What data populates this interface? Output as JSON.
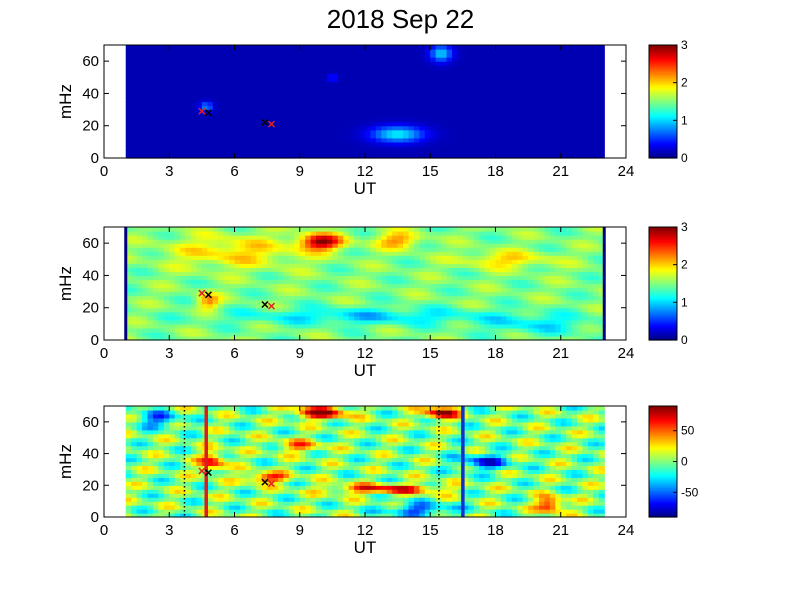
{
  "figure": {
    "title": "2018 Sep 22"
  },
  "colors": {
    "background": "#ffffff",
    "axis": "#000000",
    "red_line": "#d81e1e",
    "blue_line": "#1030d0",
    "marker_black": "#000000",
    "marker_red": "#e02020"
  },
  "chart_data": [
    {
      "type": "heatmap",
      "title": "",
      "xlabel": "UT",
      "ylabel": "mHz",
      "xlim": [
        0,
        24
      ],
      "ylim": [
        0,
        70
      ],
      "x_ticks": [
        "0",
        "3",
        "6",
        "9",
        "12",
        "15",
        "18",
        "21",
        "24"
      ],
      "y_ticks": [
        "0",
        "20",
        "40",
        "60"
      ],
      "data_x_range": [
        1,
        23
      ],
      "colormap": "jet",
      "clim": [
        0,
        3
      ],
      "colorbar_ticks": [
        "0",
        "1",
        "2",
        "3"
      ],
      "background_level": 0.15,
      "features": [
        {
          "ut": 13.5,
          "mhz": 15,
          "level": 1.1,
          "spread_ut": 1.2,
          "spread_mhz": 5
        },
        {
          "ut": 15.5,
          "mhz": 65,
          "level": 1.0,
          "spread_ut": 0.5,
          "spread_mhz": 5
        },
        {
          "ut": 4.7,
          "mhz": 32,
          "level": 0.8,
          "spread_ut": 0.3,
          "spread_mhz": 3
        },
        {
          "ut": 10.5,
          "mhz": 50,
          "level": 0.6,
          "spread_ut": 0.2,
          "spread_mhz": 2
        }
      ],
      "markers": [
        {
          "ut": 4.5,
          "mhz": 29,
          "color": "red"
        },
        {
          "ut": 4.8,
          "mhz": 28,
          "color": "black"
        },
        {
          "ut": 7.4,
          "mhz": 22,
          "color": "black"
        },
        {
          "ut": 7.7,
          "mhz": 21,
          "color": "red"
        }
      ],
      "vertical_lines": [],
      "edge_bars": false
    },
    {
      "type": "heatmap",
      "title": "",
      "xlabel": "UT",
      "ylabel": "mHz",
      "xlim": [
        0,
        24
      ],
      "ylim": [
        0,
        70
      ],
      "x_ticks": [
        "0",
        "3",
        "6",
        "9",
        "12",
        "15",
        "18",
        "21",
        "24"
      ],
      "y_ticks": [
        "0",
        "20",
        "40",
        "60"
      ],
      "data_x_range": [
        1,
        23
      ],
      "colormap": "jet",
      "clim": [
        0,
        3
      ],
      "colorbar_ticks": [
        "0",
        "1",
        "2",
        "3"
      ],
      "background_level": 1.5,
      "features": [
        {
          "ut": 10.0,
          "mhz": 61,
          "level": 2.9,
          "spread_ut": 1.0,
          "spread_mhz": 5
        },
        {
          "ut": 4.8,
          "mhz": 24,
          "level": 2.2,
          "spread_ut": 0.5,
          "spread_mhz": 5
        },
        {
          "ut": 6.0,
          "mhz": 55,
          "level": 2.0,
          "spread_ut": 3.0,
          "spread_mhz": 10
        },
        {
          "ut": 13.5,
          "mhz": 62,
          "level": 2.2,
          "spread_ut": 1.0,
          "spread_mhz": 5
        },
        {
          "ut": 18.5,
          "mhz": 50,
          "level": 2.0,
          "spread_ut": 2.0,
          "spread_mhz": 5
        },
        {
          "ut": 12.0,
          "mhz": 15,
          "level": 1.0,
          "spread_ut": 6.0,
          "spread_mhz": 5
        },
        {
          "ut": 20.0,
          "mhz": 10,
          "level": 1.1,
          "spread_ut": 2.5,
          "spread_mhz": 6
        }
      ],
      "markers": [
        {
          "ut": 4.5,
          "mhz": 29,
          "color": "red"
        },
        {
          "ut": 4.8,
          "mhz": 28,
          "color": "black"
        },
        {
          "ut": 7.4,
          "mhz": 22,
          "color": "black"
        },
        {
          "ut": 7.7,
          "mhz": 21,
          "color": "red"
        }
      ],
      "vertical_lines": [],
      "edge_bars": true
    },
    {
      "type": "heatmap",
      "title": "",
      "xlabel": "UT",
      "ylabel": "mHz",
      "xlim": [
        0,
        24
      ],
      "ylim": [
        0,
        70
      ],
      "x_ticks": [
        "0",
        "3",
        "6",
        "9",
        "12",
        "15",
        "18",
        "21",
        "24"
      ],
      "y_ticks": [
        "0",
        "20",
        "40",
        "60"
      ],
      "data_x_range": [
        1,
        23
      ],
      "colormap": "jet",
      "clim": [
        -90,
        90
      ],
      "colorbar_ticks": [
        "-50",
        "0",
        "50"
      ],
      "colorbar_tick_values": [
        -50,
        0,
        50
      ],
      "background_level": 0,
      "features": [
        {
          "ut": 10.0,
          "mhz": 66,
          "level": 85,
          "spread_ut": 1.2,
          "spread_mhz": 4
        },
        {
          "ut": 15.5,
          "mhz": 66,
          "level": 85,
          "spread_ut": 0.8,
          "spread_mhz": 4
        },
        {
          "ut": 13.0,
          "mhz": 18,
          "level": 70,
          "spread_ut": 2.5,
          "spread_mhz": 3
        },
        {
          "ut": 7.5,
          "mhz": 25,
          "level": 70,
          "spread_ut": 1.0,
          "spread_mhz": 3
        },
        {
          "ut": 5.0,
          "mhz": 35,
          "level": 65,
          "spread_ut": 0.6,
          "spread_mhz": 6
        },
        {
          "ut": 20.5,
          "mhz": 8,
          "level": 75,
          "spread_ut": 0.6,
          "spread_mhz": 5
        },
        {
          "ut": 9.0,
          "mhz": 45,
          "level": 45,
          "spread_ut": 1.0,
          "spread_mhz": 4
        },
        {
          "ut": 17.5,
          "mhz": 35,
          "level": -60,
          "spread_ut": 1.2,
          "spread_mhz": 5
        },
        {
          "ut": 14.5,
          "mhz": 5,
          "level": -55,
          "spread_ut": 1.5,
          "spread_mhz": 4
        },
        {
          "ut": 2.5,
          "mhz": 62,
          "level": -50,
          "spread_ut": 1.0,
          "spread_mhz": 5
        }
      ],
      "markers": [
        {
          "ut": 4.5,
          "mhz": 29,
          "color": "red"
        },
        {
          "ut": 4.8,
          "mhz": 28,
          "color": "black"
        },
        {
          "ut": 7.4,
          "mhz": 22,
          "color": "black"
        },
        {
          "ut": 7.7,
          "mhz": 21,
          "color": "red"
        }
      ],
      "vertical_lines": [
        {
          "ut": 4.7,
          "color": "red",
          "style": "solid"
        },
        {
          "ut": 16.5,
          "color": "blue",
          "style": "solid"
        },
        {
          "ut": 3.7,
          "color": "black",
          "style": "dotted"
        },
        {
          "ut": 15.4,
          "color": "black",
          "style": "dotted"
        }
      ],
      "edge_bars": false
    }
  ]
}
